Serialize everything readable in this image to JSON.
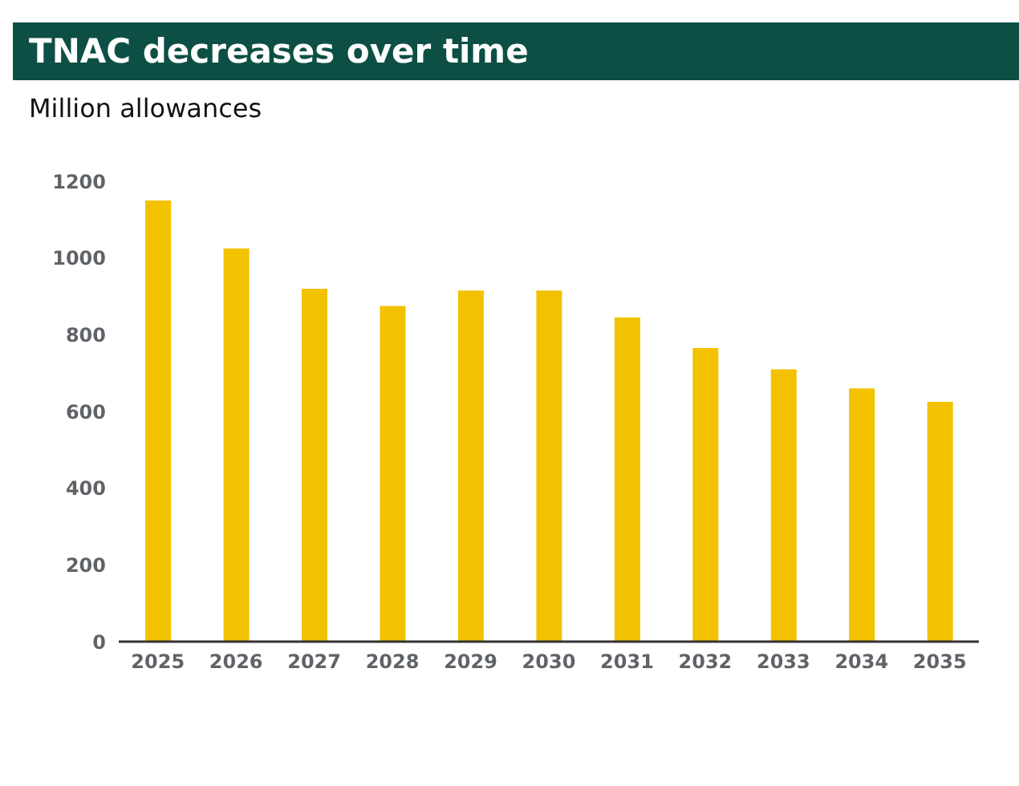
{
  "chart_data": {
    "type": "bar",
    "title": "TNAC decreases over time",
    "subtitle": "Million allowances",
    "categories": [
      "2025",
      "2026",
      "2027",
      "2028",
      "2029",
      "2030",
      "2031",
      "2032",
      "2033",
      "2034",
      "2035"
    ],
    "values": [
      1150,
      1025,
      920,
      875,
      915,
      915,
      845,
      765,
      710,
      660,
      625
    ],
    "color": "#f2c200",
    "ylim": [
      0,
      1200
    ],
    "yticks": [
      0,
      200,
      400,
      600,
      800,
      1000,
      1200
    ],
    "grid": false,
    "legend": false
  }
}
